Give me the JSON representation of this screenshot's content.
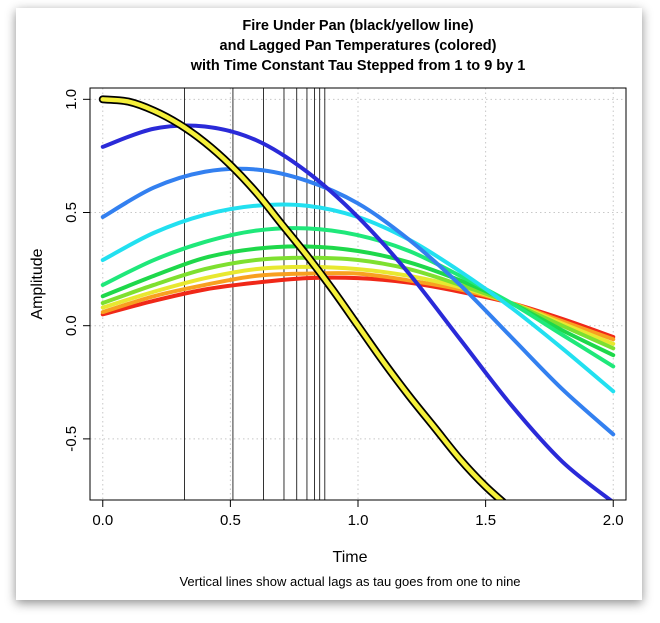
{
  "chart_data": {
    "type": "line",
    "title_lines": [
      "Fire Under Pan (black/yellow line)",
      "and Lagged Pan Temperatures (colored)",
      "with Time Constant Tau Stepped from 1 to 9 by 1"
    ],
    "xlabel": "Time",
    "ylabel": "Amplitude",
    "caption": "Vertical lines show actual lags as tau goes from one to nine",
    "xlim": [
      -0.05,
      2.05
    ],
    "ylim": [
      -0.77,
      1.05
    ],
    "xticks": [
      0.0,
      0.5,
      1.0,
      1.5,
      2.0
    ],
    "xtick_labels": [
      "0.0",
      "0.5",
      "1.0",
      "1.5",
      "2.0"
    ],
    "yticks": [
      -0.5,
      0.0,
      0.5,
      1.0
    ],
    "ytick_labels": [
      "-0.5",
      "0.0",
      "0.5",
      "1.0"
    ],
    "grid": true,
    "lag_lines_x": [
      0.32,
      0.51,
      0.63,
      0.71,
      0.76,
      0.8,
      0.83,
      0.85,
      0.87
    ],
    "fire": {
      "x": [
        0.0,
        0.1,
        0.2,
        0.3,
        0.4,
        0.5,
        0.6,
        0.7,
        0.8,
        0.9,
        1.0,
        1.1,
        1.2,
        1.3,
        1.4,
        1.5,
        1.6
      ],
      "y": [
        1.0,
        0.99,
        0.95,
        0.89,
        0.81,
        0.71,
        0.59,
        0.45,
        0.31,
        0.16,
        0.0,
        -0.16,
        -0.31,
        -0.45,
        -0.59,
        -0.71,
        -0.81
      ]
    },
    "series": [
      {
        "color": "#2a2ad8",
        "x": [
          0.0,
          0.2,
          0.4,
          0.6,
          0.8,
          1.0,
          1.2,
          1.4,
          1.6,
          1.8,
          2.0
        ],
        "y": [
          0.79,
          0.87,
          0.88,
          0.82,
          0.68,
          0.48,
          0.23,
          -0.06,
          -0.35,
          -0.6,
          -0.78
        ]
      },
      {
        "color": "#3380f0",
        "x": [
          0.0,
          0.2,
          0.4,
          0.6,
          0.8,
          1.0,
          1.2,
          1.4,
          1.6,
          1.8,
          2.0
        ],
        "y": [
          0.48,
          0.61,
          0.68,
          0.69,
          0.64,
          0.54,
          0.38,
          0.18,
          -0.05,
          -0.28,
          -0.48
        ]
      },
      {
        "color": "#22e0f0",
        "x": [
          0.0,
          0.2,
          0.4,
          0.6,
          0.8,
          1.0,
          1.2,
          1.4,
          1.6,
          1.8,
          2.0
        ],
        "y": [
          0.29,
          0.41,
          0.49,
          0.53,
          0.53,
          0.48,
          0.38,
          0.24,
          0.08,
          -0.1,
          -0.29
        ]
      },
      {
        "color": "#1fe87a",
        "x": [
          0.0,
          0.2,
          0.4,
          0.6,
          0.8,
          1.0,
          1.2,
          1.4,
          1.6,
          1.8,
          2.0
        ],
        "y": [
          0.18,
          0.29,
          0.37,
          0.42,
          0.43,
          0.4,
          0.33,
          0.22,
          0.1,
          -0.04,
          -0.18
        ]
      },
      {
        "color": "#1ed84a",
        "x": [
          0.0,
          0.2,
          0.4,
          0.6,
          0.8,
          1.0,
          1.2,
          1.4,
          1.6,
          1.8,
          2.0
        ],
        "y": [
          0.13,
          0.22,
          0.3,
          0.34,
          0.35,
          0.33,
          0.28,
          0.2,
          0.1,
          -0.02,
          -0.13
        ]
      },
      {
        "color": "#7ee030",
        "x": [
          0.0,
          0.2,
          0.4,
          0.6,
          0.8,
          1.0,
          1.2,
          1.4,
          1.6,
          1.8,
          2.0
        ],
        "y": [
          0.1,
          0.18,
          0.25,
          0.29,
          0.3,
          0.29,
          0.25,
          0.18,
          0.1,
          0.0,
          -0.1
        ]
      },
      {
        "color": "#e8e830",
        "x": [
          0.0,
          0.2,
          0.4,
          0.6,
          0.8,
          1.0,
          1.2,
          1.4,
          1.6,
          1.8,
          2.0
        ],
        "y": [
          0.08,
          0.15,
          0.21,
          0.25,
          0.26,
          0.25,
          0.22,
          0.17,
          0.1,
          0.01,
          -0.08
        ]
      },
      {
        "color": "#f8a020",
        "x": [
          0.0,
          0.2,
          0.4,
          0.6,
          0.8,
          1.0,
          1.2,
          1.4,
          1.6,
          1.8,
          2.0
        ],
        "y": [
          0.06,
          0.13,
          0.18,
          0.22,
          0.23,
          0.23,
          0.2,
          0.16,
          0.1,
          0.02,
          -0.06
        ]
      },
      {
        "color": "#f02818",
        "x": [
          0.0,
          0.2,
          0.4,
          0.6,
          0.8,
          1.0,
          1.2,
          1.4,
          1.6,
          1.8,
          2.0
        ],
        "y": [
          0.05,
          0.11,
          0.16,
          0.19,
          0.21,
          0.21,
          0.19,
          0.15,
          0.1,
          0.03,
          -0.05
        ]
      }
    ]
  }
}
